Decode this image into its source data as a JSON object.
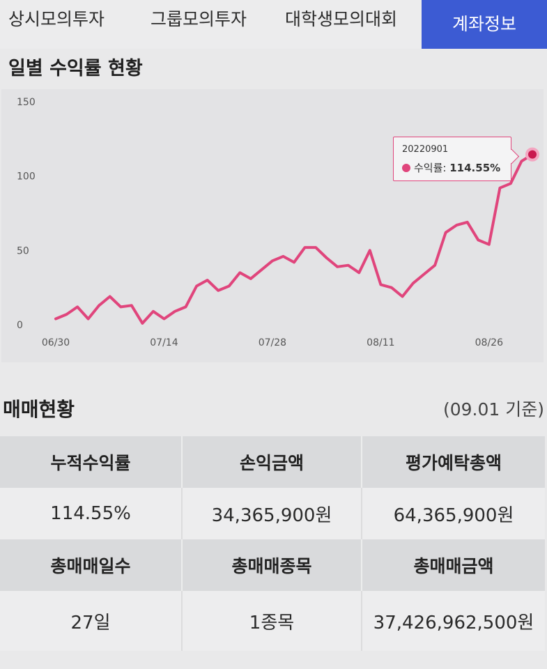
{
  "tabs": {
    "items": [
      "상시모의투자",
      "그룹모의투자",
      "대학생모의대회"
    ],
    "active": "계좌정보"
  },
  "daily_return": {
    "title": "일별 수익률 현황"
  },
  "tooltip": {
    "date": "20220901",
    "label": "수익률:",
    "value": "114.55%"
  },
  "chart_data": {
    "type": "line",
    "title": "일별 수익률 현황",
    "xlabel": "",
    "ylabel": "",
    "ylim": [
      0,
      150
    ],
    "y_ticks": [
      "0",
      "50",
      "100",
      "150"
    ],
    "x_tick_labels": [
      "06/30",
      "07/14",
      "07/28",
      "08/11",
      "08/26"
    ],
    "grid": false,
    "color": "#e0457c",
    "series": [
      {
        "name": "수익률",
        "x": [
          "06/30",
          "07/01",
          "07/04",
          "07/05",
          "07/06",
          "07/07",
          "07/08",
          "07/11",
          "07/12",
          "07/13",
          "07/14",
          "07/15",
          "07/18",
          "07/19",
          "07/20",
          "07/21",
          "07/22",
          "07/25",
          "07/26",
          "07/27",
          "07/28",
          "07/29",
          "08/01",
          "08/02",
          "08/03",
          "08/04",
          "08/05",
          "08/08",
          "08/09",
          "08/10",
          "08/11",
          "08/12",
          "08/16",
          "08/17",
          "08/18",
          "08/19",
          "08/22",
          "08/23",
          "08/24",
          "08/25",
          "08/26",
          "08/29",
          "08/30",
          "08/31",
          "09/01"
        ],
        "values": [
          4,
          7,
          12,
          4,
          13,
          19,
          12,
          13,
          1,
          9,
          4,
          9,
          12,
          26,
          30,
          23,
          26,
          35,
          31,
          37,
          43,
          46,
          42,
          52,
          52,
          45,
          39,
          40,
          35,
          50,
          27,
          25,
          19,
          28,
          34,
          40,
          62,
          67,
          69,
          57,
          54,
          92,
          95,
          110,
          114.55
        ]
      }
    ]
  },
  "trading": {
    "title": "매매현황",
    "basis": "(09.01 기준)",
    "rows": [
      {
        "headers": [
          "누적수익률",
          "손익금액",
          "평가예탁총액"
        ],
        "values": [
          "114.55%",
          "34,365,900원",
          "64,365,900원"
        ]
      },
      {
        "headers": [
          "총매매일수",
          "총매매종목",
          "총매매금액"
        ],
        "values": [
          "27일",
          "1종목",
          "37,426,962,500원"
        ]
      }
    ]
  }
}
